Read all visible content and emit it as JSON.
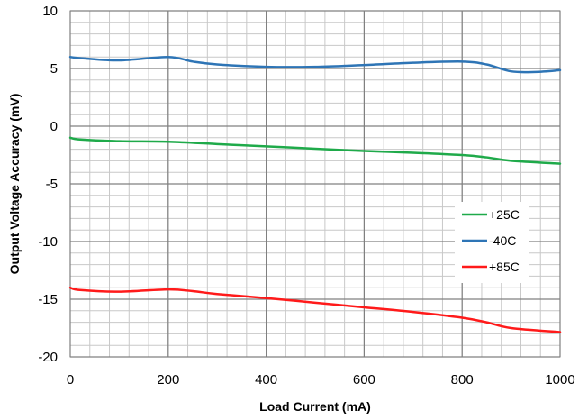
{
  "chart_data": {
    "type": "line",
    "xlabel": "Load Current (mA)",
    "ylabel": "Output Voltage Accuracy (mV)",
    "xlim": [
      0,
      1000
    ],
    "ylim": [
      -20,
      10
    ],
    "x_ticks": [
      0,
      200,
      400,
      600,
      800,
      1000
    ],
    "y_ticks": [
      10,
      5,
      0,
      -5,
      -10,
      -15,
      -20
    ],
    "x_tick_labels": [
      "0",
      "200",
      "400",
      "600",
      "800",
      "1000"
    ],
    "y_tick_labels": [
      "10",
      "5",
      "0",
      "-5",
      "-10",
      "-15",
      "-20"
    ],
    "grid": true,
    "legend_position": "lower-right",
    "series": [
      {
        "name": "+25C",
        "color": "#1faa4a",
        "points": [
          [
            0,
            -1.0
          ],
          [
            20,
            -1.15
          ],
          [
            100,
            -1.3
          ],
          [
            200,
            -1.35
          ],
          [
            300,
            -1.55
          ],
          [
            400,
            -1.75
          ],
          [
            500,
            -1.95
          ],
          [
            600,
            -2.15
          ],
          [
            700,
            -2.3
          ],
          [
            800,
            -2.5
          ],
          [
            850,
            -2.7
          ],
          [
            900,
            -3.0
          ],
          [
            1000,
            -3.25
          ]
        ]
      },
      {
        "name": "-40C",
        "color": "#2e75b6",
        "points": [
          [
            0,
            6.0
          ],
          [
            20,
            5.9
          ],
          [
            100,
            5.7
          ],
          [
            200,
            6.0
          ],
          [
            250,
            5.6
          ],
          [
            300,
            5.35
          ],
          [
            400,
            5.15
          ],
          [
            500,
            5.15
          ],
          [
            600,
            5.3
          ],
          [
            700,
            5.5
          ],
          [
            800,
            5.6
          ],
          [
            850,
            5.35
          ],
          [
            900,
            4.75
          ],
          [
            950,
            4.7
          ],
          [
            1000,
            4.85
          ]
        ]
      },
      {
        "name": "+85C",
        "color": "#ff1a1a",
        "points": [
          [
            0,
            -14.0
          ],
          [
            20,
            -14.2
          ],
          [
            100,
            -14.35
          ],
          [
            200,
            -14.15
          ],
          [
            250,
            -14.3
          ],
          [
            300,
            -14.55
          ],
          [
            400,
            -14.9
          ],
          [
            500,
            -15.3
          ],
          [
            600,
            -15.7
          ],
          [
            700,
            -16.1
          ],
          [
            800,
            -16.6
          ],
          [
            850,
            -17.0
          ],
          [
            900,
            -17.5
          ],
          [
            1000,
            -17.85
          ]
        ]
      }
    ]
  }
}
